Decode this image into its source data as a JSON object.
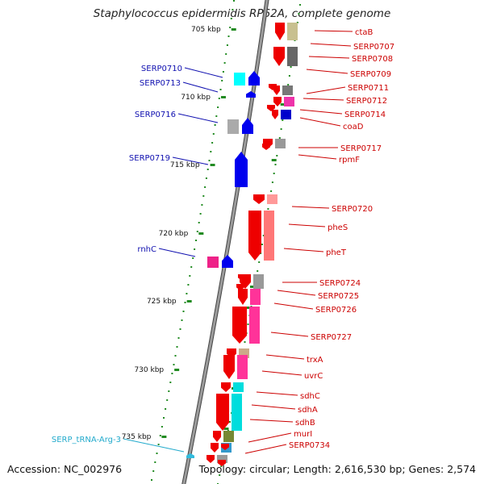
{
  "title": "Staphylococcus epidermidis RP62A, complete genome",
  "accession": "Accession: NC_002976",
  "topology": "Topology: circular; Length: 2,616,530 bp; Genes: 2,574",
  "colors": {
    "backbone": "#8a8a8a",
    "forward_gene": "#0000ee",
    "reverse_gene": "#ee0000",
    "trna": "#33bbdd",
    "tick": "#228B22",
    "label_forward": "#1010b0",
    "label_reverse": "#cc0000",
    "label_trna": "#22aacc"
  },
  "ticks": [
    "705 kbp",
    "710 kbp",
    "715 kbp",
    "720 kbp",
    "725 kbp",
    "730 kbp",
    "735 kbp"
  ],
  "forward_labels": [
    "SERP0710",
    "SERP0713",
    "SERP0716",
    "SERP0719",
    "rnhC"
  ],
  "trna_labels": [
    "SERP_tRNA-Arg-3"
  ],
  "reverse_labels": [
    "ctaB",
    "SERP0707",
    "SERP0708",
    "SERP0709",
    "SERP0711",
    "SERP0712",
    "SERP0714",
    "coaD",
    "SERP0717",
    "rpmF",
    "SERP0720",
    "pheS",
    "pheT",
    "SERP0724",
    "SERP0725",
    "SERP0726",
    "SERP0727",
    "trxA",
    "uvrC",
    "sdhC",
    "sdhA",
    "sdhB",
    "murI",
    "SERP0734"
  ]
}
